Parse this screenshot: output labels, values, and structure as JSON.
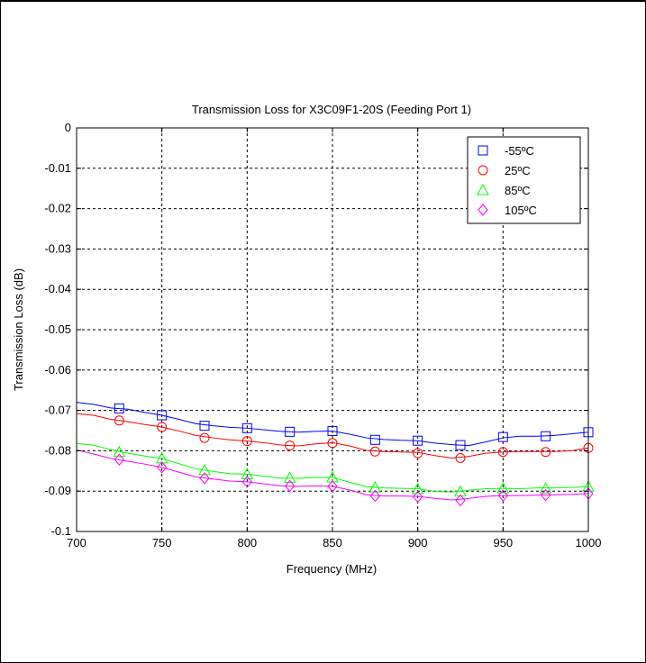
{
  "chart_data": {
    "type": "line",
    "title": "Transmission Loss for X3C09F1-20S (Feeding Port 1)",
    "xlabel": "Frequency (MHz)",
    "ylabel": "Transmission Loss (dB)",
    "xlim": [
      700,
      1000
    ],
    "ylim": [
      -0.1,
      0
    ],
    "xticks": [
      700,
      750,
      800,
      850,
      900,
      950,
      1000
    ],
    "yticks": [
      0,
      -0.01,
      -0.02,
      -0.03,
      -0.04,
      -0.05,
      -0.06,
      -0.07,
      -0.08,
      -0.09,
      -0.1
    ],
    "xtick_labels": [
      "700",
      "750",
      "800",
      "850",
      "900",
      "950",
      "1000"
    ],
    "ytick_labels": [
      "0",
      "-0.01",
      "-0.02",
      "-0.03",
      "-0.04",
      "-0.05",
      "-0.06",
      "-0.07",
      "-0.08",
      "-0.09",
      "-0.1"
    ],
    "grid": true,
    "legend_position": "top-right",
    "series": [
      {
        "name": "-55ºC",
        "color": "#0000ff",
        "marker": "square",
        "x": [
          700,
          710,
          720,
          730,
          740,
          750,
          760,
          770,
          780,
          790,
          800,
          810,
          820,
          830,
          840,
          850,
          860,
          870,
          880,
          890,
          900,
          910,
          920,
          930,
          940,
          950,
          960,
          970,
          980,
          990,
          1000
        ],
        "values": [
          -0.068,
          -0.0685,
          -0.0694,
          -0.0697,
          -0.0705,
          -0.0712,
          -0.0722,
          -0.0733,
          -0.0738,
          -0.0742,
          -0.0744,
          -0.0748,
          -0.0752,
          -0.0754,
          -0.0752,
          -0.0751,
          -0.0759,
          -0.0768,
          -0.0772,
          -0.0774,
          -0.0775,
          -0.0781,
          -0.0785,
          -0.0787,
          -0.0778,
          -0.0768,
          -0.0764,
          -0.0764,
          -0.0762,
          -0.0758,
          -0.0754
        ],
        "marker_x": [
          725,
          750,
          775,
          800,
          825,
          850,
          875,
          900,
          925,
          950,
          975,
          1000
        ],
        "marker_values": [
          -0.0695,
          -0.0712,
          -0.0738,
          -0.0744,
          -0.0753,
          -0.0751,
          -0.0773,
          -0.0775,
          -0.0786,
          -0.0766,
          -0.0764,
          -0.0754
        ]
      },
      {
        "name": "25ºC",
        "color": "#ff0000",
        "marker": "circle",
        "x": [
          700,
          710,
          720,
          730,
          740,
          750,
          760,
          770,
          780,
          790,
          800,
          810,
          820,
          830,
          840,
          850,
          860,
          870,
          880,
          890,
          900,
          910,
          920,
          930,
          940,
          950,
          960,
          970,
          980,
          990,
          1000
        ],
        "values": [
          -0.0708,
          -0.0712,
          -0.0722,
          -0.0728,
          -0.0735,
          -0.0741,
          -0.0751,
          -0.0762,
          -0.0768,
          -0.0773,
          -0.0776,
          -0.078,
          -0.0786,
          -0.0788,
          -0.0783,
          -0.078,
          -0.0788,
          -0.0799,
          -0.0802,
          -0.0803,
          -0.0804,
          -0.0812,
          -0.0818,
          -0.0814,
          -0.0806,
          -0.0803,
          -0.0802,
          -0.0802,
          -0.0802,
          -0.08,
          -0.0793
        ],
        "marker_x": [
          725,
          750,
          775,
          800,
          825,
          850,
          875,
          900,
          925,
          950,
          975,
          1000
        ],
        "marker_values": [
          -0.0725,
          -0.0741,
          -0.0768,
          -0.0776,
          -0.0787,
          -0.0781,
          -0.0802,
          -0.0806,
          -0.0818,
          -0.0803,
          -0.0803,
          -0.0793
        ]
      },
      {
        "name": "85ºC",
        "color": "#00ff00",
        "marker": "triangle",
        "x": [
          700,
          710,
          720,
          730,
          740,
          750,
          760,
          770,
          780,
          790,
          800,
          810,
          820,
          830,
          840,
          850,
          860,
          870,
          880,
          890,
          900,
          910,
          920,
          930,
          940,
          950,
          960,
          970,
          980,
          990,
          1000
        ],
        "values": [
          -0.0782,
          -0.0786,
          -0.0797,
          -0.0806,
          -0.0813,
          -0.0819,
          -0.0832,
          -0.0845,
          -0.0851,
          -0.0857,
          -0.0858,
          -0.0863,
          -0.0868,
          -0.0868,
          -0.0866,
          -0.0866,
          -0.0878,
          -0.0889,
          -0.0892,
          -0.0893,
          -0.0894,
          -0.0901,
          -0.0902,
          -0.0898,
          -0.0894,
          -0.0893,
          -0.0894,
          -0.0892,
          -0.0892,
          -0.0891,
          -0.0889
        ],
        "marker_x": [
          725,
          750,
          775,
          800,
          825,
          850,
          875,
          900,
          925,
          950,
          975,
          1000
        ],
        "marker_values": [
          -0.0803,
          -0.0819,
          -0.0848,
          -0.0858,
          -0.0867,
          -0.0866,
          -0.0891,
          -0.0895,
          -0.0901,
          -0.0893,
          -0.0893,
          -0.0889
        ]
      },
      {
        "name": "105ºC",
        "color": "#ff00ff",
        "marker": "diamond",
        "x": [
          700,
          710,
          720,
          730,
          740,
          750,
          760,
          770,
          780,
          790,
          800,
          810,
          820,
          830,
          840,
          850,
          860,
          870,
          880,
          890,
          900,
          910,
          920,
          930,
          940,
          950,
          960,
          970,
          980,
          990,
          1000
        ],
        "values": [
          -0.0798,
          -0.0808,
          -0.0819,
          -0.0826,
          -0.0833,
          -0.0841,
          -0.0853,
          -0.0865,
          -0.087,
          -0.0875,
          -0.0877,
          -0.0882,
          -0.0887,
          -0.0888,
          -0.0887,
          -0.0888,
          -0.0897,
          -0.0909,
          -0.0912,
          -0.0912,
          -0.0913,
          -0.0918,
          -0.0922,
          -0.0918,
          -0.0913,
          -0.0911,
          -0.0911,
          -0.091,
          -0.0909,
          -0.0908,
          -0.0906
        ],
        "marker_x": [
          725,
          750,
          775,
          800,
          825,
          850,
          875,
          900,
          925,
          950,
          975,
          1000
        ],
        "marker_values": [
          -0.0822,
          -0.0841,
          -0.0868,
          -0.0877,
          -0.0887,
          -0.0888,
          -0.0912,
          -0.0914,
          -0.0923,
          -0.0911,
          -0.091,
          -0.0906
        ]
      }
    ]
  }
}
